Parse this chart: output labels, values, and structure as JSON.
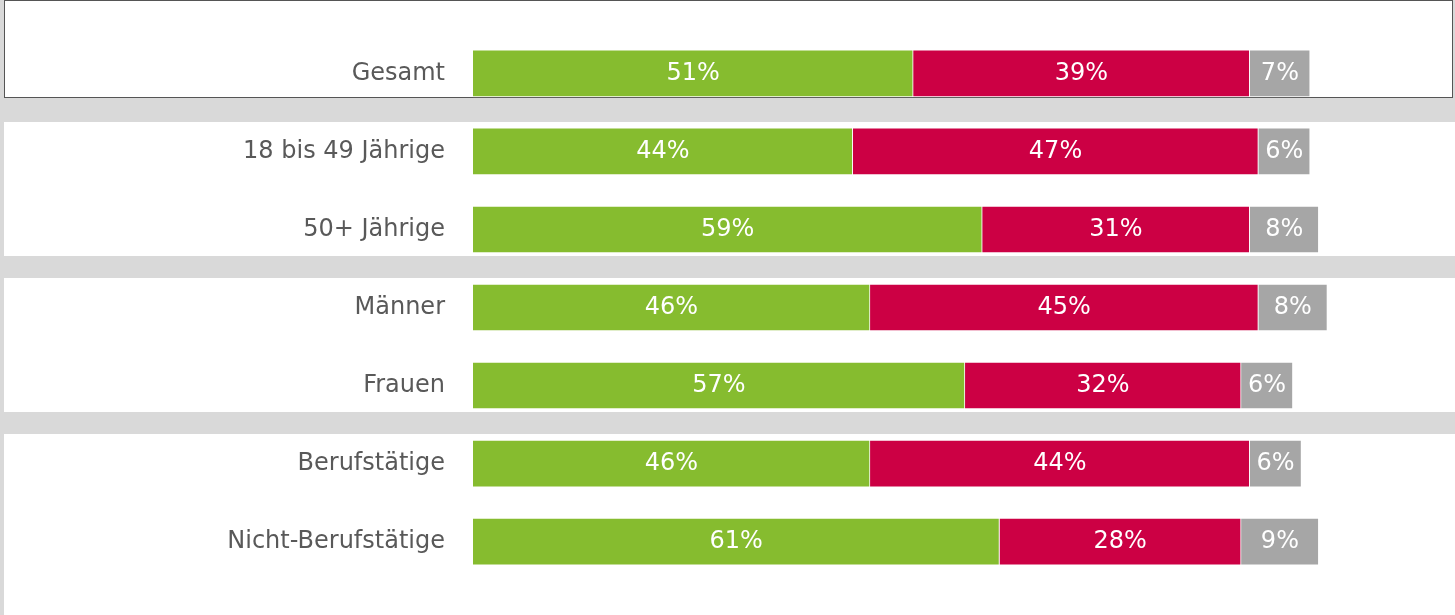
{
  "chart_data": {
    "type": "bar",
    "orientation": "horizontal",
    "stacked": true,
    "categories": [
      "Gesamt",
      "18 bis 49 Jährige",
      "50+ Jährige",
      "Männer",
      "Frauen",
      "Berufstätige",
      "Nicht-Berufstätige"
    ],
    "series": [
      {
        "color": "#86bc2f",
        "values": [
          51,
          44,
          59,
          46,
          57,
          46,
          61
        ],
        "value_labels": [
          "51%",
          "44%",
          "59%",
          "46%",
          "57%",
          "46%",
          "61%"
        ]
      },
      {
        "color": "#cc0044",
        "values": [
          39,
          47,
          31,
          45,
          32,
          44,
          28
        ],
        "value_labels": [
          "39%",
          "47%",
          "31%",
          "45%",
          "32%",
          "44%",
          "28%"
        ]
      },
      {
        "color": "#a6a6a6",
        "values": [
          7,
          6,
          8,
          8,
          6,
          6,
          9
        ],
        "value_labels": [
          "7%",
          "6%",
          "8%",
          "8%",
          "6%",
          "6%",
          "9%"
        ]
      }
    ],
    "tick_labels": "y",
    "legend": false
  }
}
